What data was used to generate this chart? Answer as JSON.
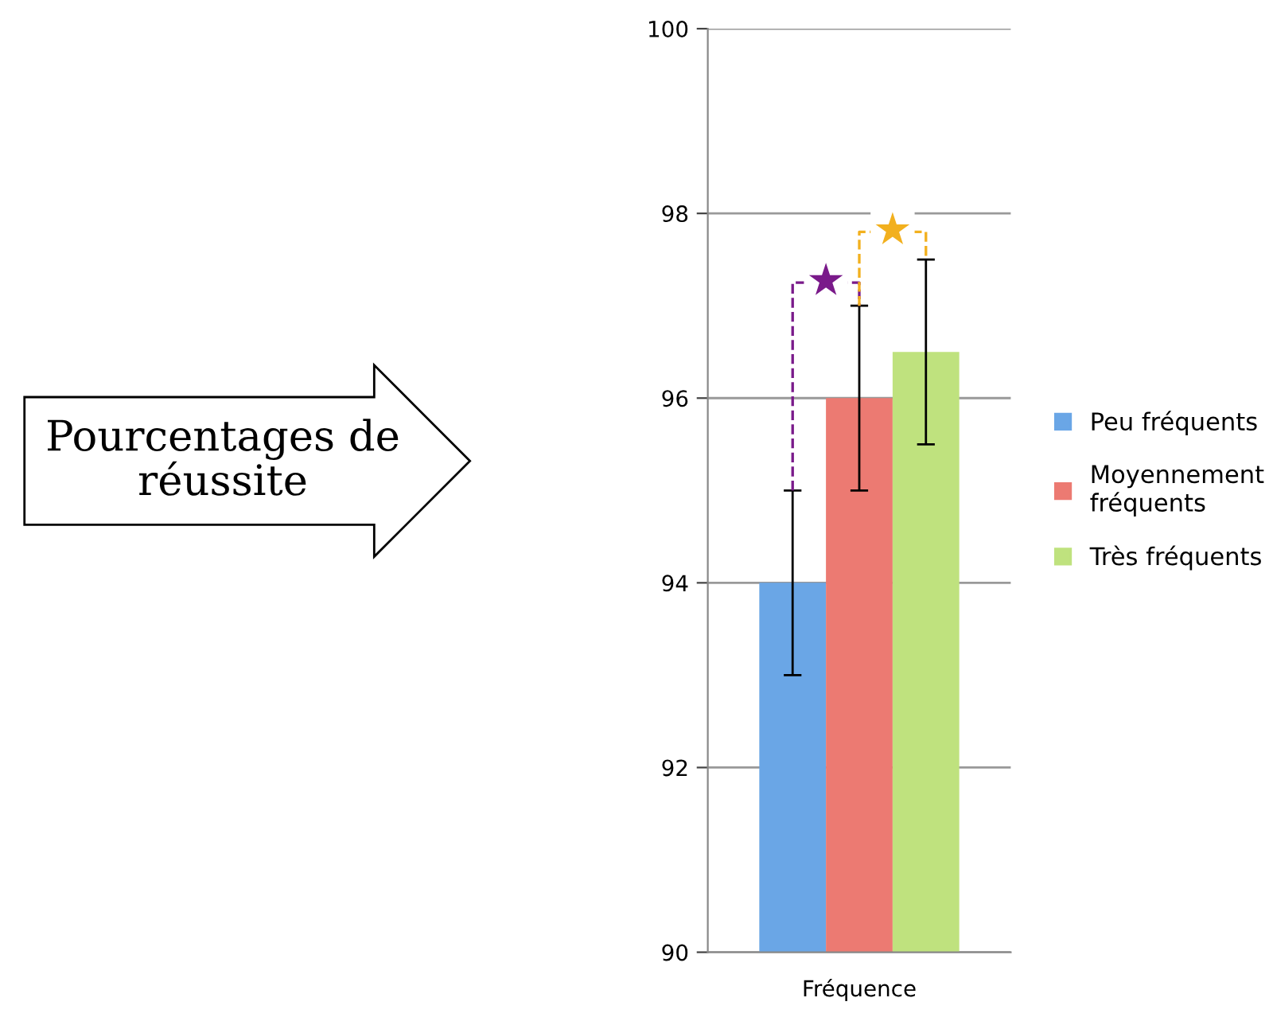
{
  "chart_data": {
    "type": "bar",
    "categories": [
      "Fréquence"
    ],
    "series": [
      {
        "name": "Peu fréquents",
        "color": "#6aa6e6",
        "values": [
          94
        ],
        "errors": [
          1
        ]
      },
      {
        "name": "Moyennement\nfréquents",
        "color": "#ec7a72",
        "values": [
          96
        ],
        "errors": [
          1
        ]
      },
      {
        "name": "Très fréquents",
        "color": "#bfe27e",
        "values": [
          96.5
        ],
        "errors": [
          1
        ]
      }
    ],
    "ylim": [
      90,
      100
    ],
    "yticks": [
      90,
      92,
      94,
      96,
      98,
      100
    ],
    "grid": "y",
    "legend": "right",
    "annotations": [
      {
        "text": "★",
        "y": 97.25
      },
      {
        "text": "★",
        "y": 97.8
      },
      "Pourcentages de réussite"
    ]
  }
}
